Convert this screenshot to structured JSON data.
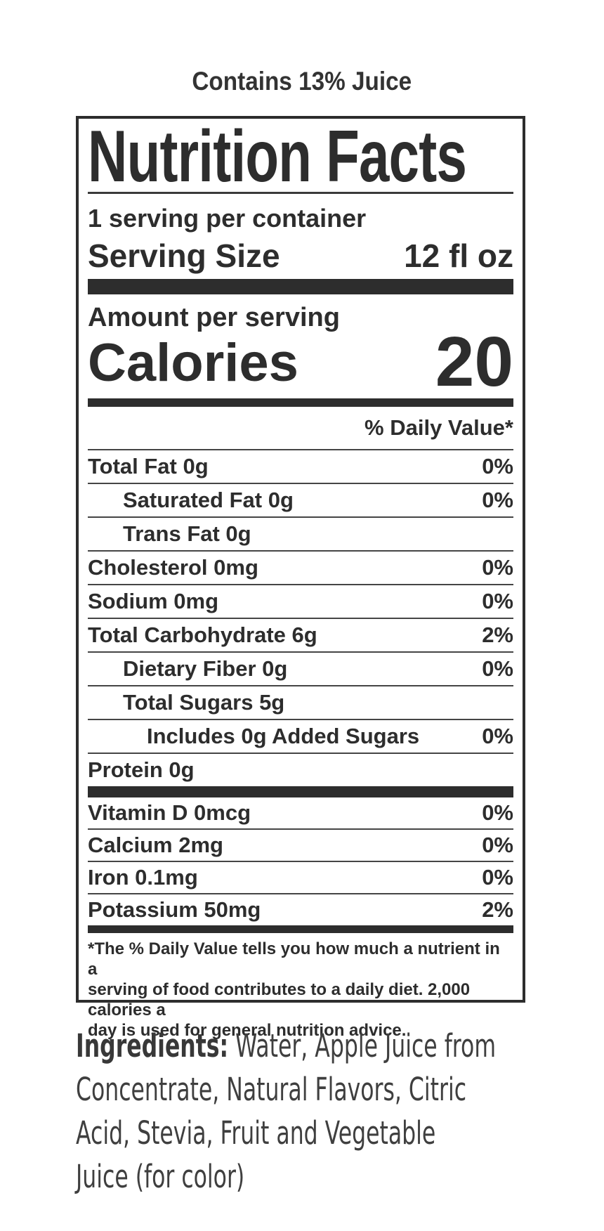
{
  "page": {
    "background": "#ffffff",
    "text_color": "#2d2d2d",
    "ingredients_color": "#3f3f3f"
  },
  "header": {
    "contains_text": "Contains 13% Juice"
  },
  "label": {
    "title": "Nutrition Facts",
    "servings_per_container": "1 serving per container",
    "serving_size_label": "Serving Size",
    "serving_size_value": "12 fl oz",
    "amount_per_serving": "Amount per serving",
    "calories_label": "Calories",
    "calories_value": "20",
    "daily_value_header": "% Daily Value*",
    "nutrients": [
      {
        "name": "Total Fat 0g",
        "dv": "0%"
      },
      {
        "name": "Saturated Fat 0g",
        "dv": "0%"
      },
      {
        "name": "Trans Fat 0g",
        "dv": ""
      },
      {
        "name": "Cholesterol 0mg",
        "dv": "0%"
      },
      {
        "name": "Sodium 0mg",
        "dv": "0%"
      },
      {
        "name": "Total Carbohydrate 6g",
        "dv": "2%"
      },
      {
        "name": "Dietary Fiber 0g",
        "dv": "0%"
      },
      {
        "name": "Total Sugars 5g",
        "dv": ""
      },
      {
        "name": "Includes 0g Added Sugars",
        "dv": "0%"
      },
      {
        "name": "Protein 0g",
        "dv": ""
      }
    ],
    "vitamins": [
      {
        "name": "Vitamin D 0mcg",
        "dv": "0%"
      },
      {
        "name": "Calcium 2mg",
        "dv": "0%"
      },
      {
        "name": "Iron 0.1mg",
        "dv": "0%"
      },
      {
        "name": "Potassium 50mg",
        "dv": "2%"
      }
    ],
    "footnote_lines": [
      "*The % Daily Value tells you how much a nutrient in a",
      "serving of food contributes to a daily diet. 2,000 calories a",
      "day is used for general nutrition advice."
    ]
  },
  "ingredients": {
    "label": "Ingredients:",
    "lines": [
      " Water, Apple Juice from",
      "Concentrate, Natural Flavors, Citric",
      "Acid, Stevia, Fruit and Vegetable",
      "Juice (for color)"
    ]
  }
}
